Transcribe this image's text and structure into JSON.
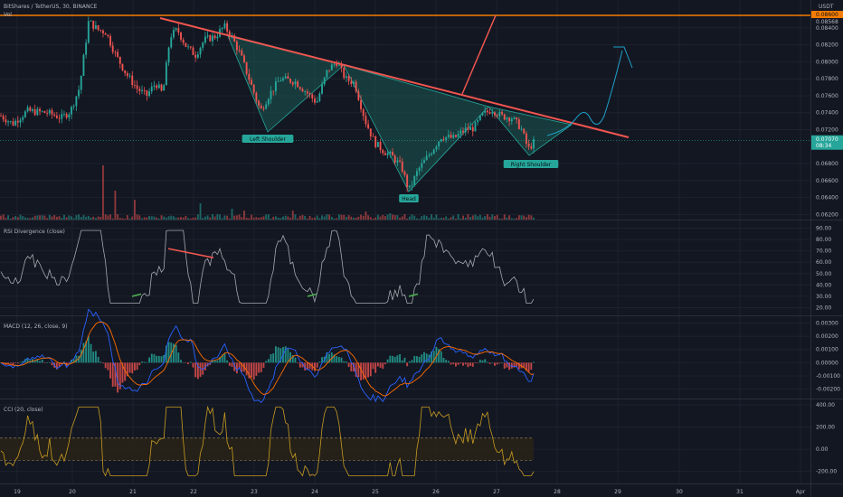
{
  "header": {
    "symbol": "BitShares / TetherUS, 30, BINANCE",
    "vol": "Vol",
    "currency": "USDT"
  },
  "colors": {
    "bg": "#131722",
    "grid": "#1e222d",
    "separator": "#2a2e39",
    "up": "#26a69a",
    "down": "#ef5350",
    "text": "#b2b5be",
    "orange": "#f57c00",
    "trend": "#f0564f",
    "pattern_fill": "#1c5a52",
    "pattern_edge": "#26a69a",
    "rsi_line": "#a6a8ad",
    "macd_line": "#2962ff",
    "signal_line": "#ff6d00",
    "cci_line": "#c89b20",
    "cci_band": "#2b2417",
    "arrow": "#1da1c9"
  },
  "chart_data": [
    {
      "type": "candlestick",
      "title": "BitShares / TetherUS, 30, BINANCE",
      "x_tick_labels": [
        "19",
        "20",
        "21",
        "22",
        "23",
        "24",
        "25",
        "26",
        "27",
        "28",
        "29",
        "30",
        "31",
        "Apr"
      ],
      "y_tick_labels": [
        "0.08400",
        "0.08200",
        "0.08000",
        "0.07800",
        "0.07600",
        "0.07400",
        "0.07200",
        "0.06800",
        "0.06600",
        "0.06400",
        "0.06200"
      ],
      "ylim": [
        0.0614,
        0.0858
      ],
      "price_badge": {
        "value": "0.07070",
        "countdown": "08:34"
      },
      "orange_level": {
        "value": "0.08600",
        "label": "0.08600",
        "label_small": "0.08568"
      },
      "annotations": [
        "Left Shoulder",
        "Head",
        "Right Shoulder"
      ],
      "pattern": "inverse head and shoulders with descending neckline",
      "data_points": 220
    },
    {
      "type": "line",
      "title": "RSI Divergence (close)",
      "y_tick_labels": [
        "90.00",
        "80.00",
        "70.00",
        "60.00",
        "50.00",
        "40.00",
        "30.00",
        "20.00"
      ],
      "ylim": [
        18,
        92
      ]
    },
    {
      "type": "line",
      "title": "MACD (12, 26, close, 9)",
      "y_tick_labels": [
        "0.00300",
        "0.00200",
        "0.00100",
        "0.00000",
        "-0.00100",
        "-0.00200"
      ],
      "ylim": [
        -0.0023,
        0.0031
      ]
    },
    {
      "type": "line",
      "title": "CCI (20, close)",
      "y_tick_labels": [
        "400.00",
        "200.00",
        "0.00",
        "-200.00"
      ],
      "ylim": [
        -260,
        400
      ],
      "bands": [
        100,
        -100
      ]
    }
  ]
}
